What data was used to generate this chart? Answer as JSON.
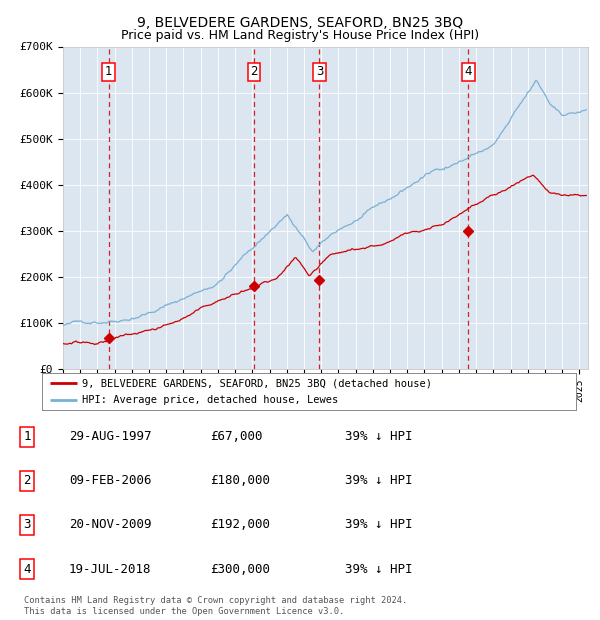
{
  "title": "9, BELVEDERE GARDENS, SEAFORD, BN25 3BQ",
  "subtitle": "Price paid vs. HM Land Registry's House Price Index (HPI)",
  "bg_color": "#dce6f1",
  "red_line_color": "#cc0000",
  "blue_line_color": "#7ab0d4",
  "sale_dates": [
    1997.66,
    2006.1,
    2009.9,
    2018.54
  ],
  "sale_prices": [
    67000,
    180000,
    192000,
    300000
  ],
  "sale_labels": [
    "1",
    "2",
    "3",
    "4"
  ],
  "vline_color": "#cc0000",
  "marker_color": "#cc0000",
  "legend_red_label": "9, BELVEDERE GARDENS, SEAFORD, BN25 3BQ (detached house)",
  "legend_blue_label": "HPI: Average price, detached house, Lewes",
  "table_data": [
    [
      "1",
      "29-AUG-1997",
      "£67,000",
      "39% ↓ HPI"
    ],
    [
      "2",
      "09-FEB-2006",
      "£180,000",
      "39% ↓ HPI"
    ],
    [
      "3",
      "20-NOV-2009",
      "£192,000",
      "39% ↓ HPI"
    ],
    [
      "4",
      "19-JUL-2018",
      "£300,000",
      "39% ↓ HPI"
    ]
  ],
  "footer": "Contains HM Land Registry data © Crown copyright and database right 2024.\nThis data is licensed under the Open Government Licence v3.0.",
  "ylim": [
    0,
    700000
  ],
  "yticks": [
    0,
    100000,
    200000,
    300000,
    400000,
    500000,
    600000,
    700000
  ],
  "ytick_labels": [
    "£0",
    "£100K",
    "£200K",
    "£300K",
    "£400K",
    "£500K",
    "£600K",
    "£700K"
  ],
  "xlim_start": 1995.0,
  "xlim_end": 2025.5,
  "title_fontsize": 10,
  "subtitle_fontsize": 9
}
